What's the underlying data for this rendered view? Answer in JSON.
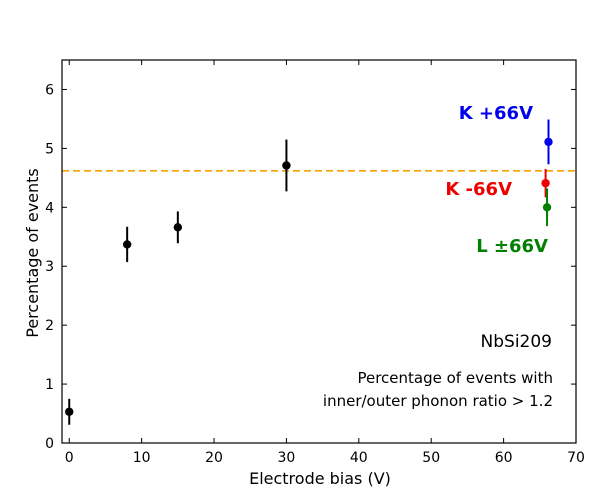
{
  "chart_data": {
    "type": "scatter",
    "title": "",
    "xlabel": "Electrode bias (V)",
    "ylabel": "Percentage of events",
    "xlim": [
      -1,
      70
    ],
    "ylim": [
      0,
      6.5
    ],
    "xticks": [
      0,
      10,
      20,
      30,
      40,
      50,
      60,
      70
    ],
    "yticks": [
      0,
      1,
      2,
      3,
      4,
      5,
      6
    ],
    "grid": false,
    "series": [
      {
        "color": "#000000",
        "points": [
          {
            "x": 0,
            "y": 0.53,
            "err": 0.22
          },
          {
            "x": 8,
            "y": 3.37,
            "err": 0.3
          },
          {
            "x": 15,
            "y": 3.66,
            "err": 0.27
          },
          {
            "x": 30,
            "y": 4.71,
            "err": 0.44
          }
        ]
      },
      {
        "name": "K +66V",
        "color": "#0000ee",
        "points": [
          {
            "x": 66.2,
            "y": 5.11,
            "err": 0.38
          }
        ]
      },
      {
        "name": "K -66V",
        "color": "#ee0000",
        "points": [
          {
            "x": 65.8,
            "y": 4.41,
            "err": 0.24
          }
        ]
      },
      {
        "name": "L ±66V",
        "color": "#008000",
        "points": [
          {
            "x": 66.0,
            "y": 4.0,
            "err": 0.32
          }
        ]
      }
    ],
    "reference_line": {
      "y": 4.62,
      "color": "#f5a000",
      "style": "dashed"
    },
    "annotations": {
      "sample": "NbSi209",
      "note_line1": "Percentage of events with",
      "note_line2": "inner/outer phonon ratio > 1.2"
    }
  }
}
